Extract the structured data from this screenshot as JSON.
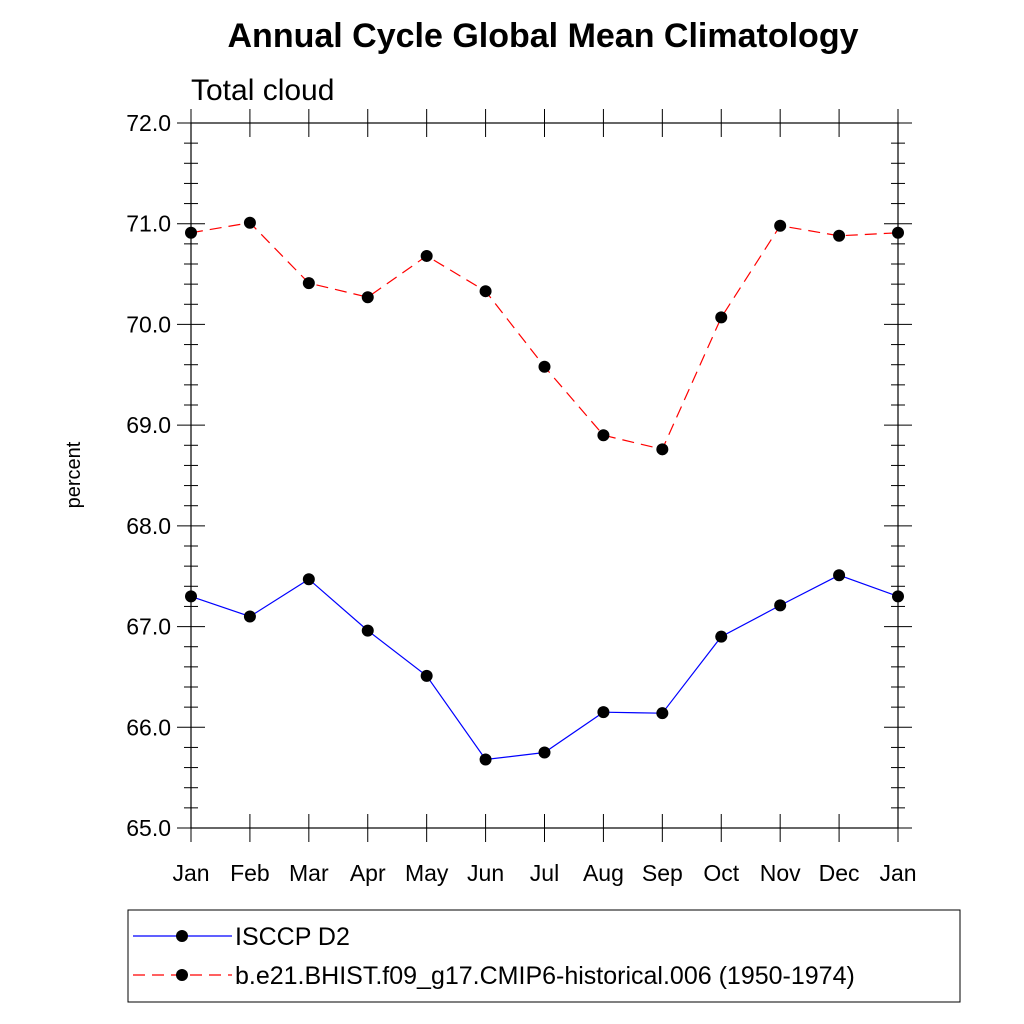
{
  "chart_data": {
    "type": "line",
    "title": "Annual Cycle Global Mean Climatology",
    "subtitle": "Total cloud",
    "ylabel": "percent",
    "xlabel": "",
    "categories": [
      "Jan",
      "Feb",
      "Mar",
      "Apr",
      "May",
      "Jun",
      "Jul",
      "Aug",
      "Sep",
      "Oct",
      "Nov",
      "Dec",
      "Jan"
    ],
    "ylim": [
      65.0,
      72.0
    ],
    "yticks": [
      "65.0",
      "66.0",
      "67.0",
      "68.0",
      "69.0",
      "70.0",
      "71.0",
      "72.0"
    ],
    "grid": false,
    "legend_position": "bottom",
    "series": [
      {
        "name": "ISCCP D2",
        "color": "#0000ff",
        "line_style": "solid",
        "marker": "filled-circle",
        "values": [
          67.3,
          67.1,
          67.47,
          66.96,
          66.51,
          65.68,
          65.75,
          66.15,
          66.14,
          66.9,
          67.21,
          67.51,
          67.3
        ]
      },
      {
        "name": "b.e21.BHIST.f09_g17.CMIP6-historical.006 (1950-1974)",
        "color": "#ff0000",
        "line_style": "dashed",
        "marker": "filled-circle",
        "values": [
          70.91,
          71.01,
          70.41,
          70.27,
          70.68,
          70.33,
          69.58,
          68.9,
          68.76,
          70.07,
          70.98,
          70.88,
          70.91
        ]
      }
    ]
  }
}
